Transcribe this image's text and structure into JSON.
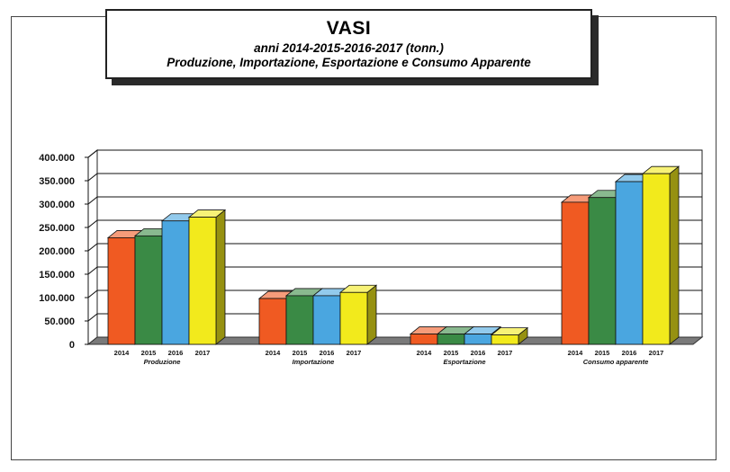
{
  "chart_data": {
    "type": "bar",
    "title": "VASI",
    "subtitle": "anni 2014-2015-2016-2017 (tonn.)",
    "subtitle2": "Produzione, Importazione, Esportazione e Consumo Apparente",
    "categories": [
      "Produzione",
      "Importazione",
      "Esportazione",
      "Consumo apparente"
    ],
    "series": [
      {
        "name": "2014",
        "color": "#f05a22",
        "values": [
          228000,
          98000,
          22000,
          304000
        ]
      },
      {
        "name": "2015",
        "color": "#3a8a45",
        "values": [
          232000,
          104000,
          22000,
          314000
        ]
      },
      {
        "name": "2016",
        "color": "#4aa6e0",
        "values": [
          264000,
          104000,
          22000,
          348000
        ]
      },
      {
        "name": "2017",
        "color": "#f2ea1c",
        "values": [
          272000,
          111000,
          20000,
          365000
        ]
      }
    ],
    "yticks": [
      "0",
      "50.000",
      "100.000",
      "150.000",
      "200.000",
      "250.000",
      "300.000",
      "350.000",
      "400.000"
    ],
    "ylim": [
      0,
      400000
    ],
    "grid": true,
    "legend": "none"
  }
}
